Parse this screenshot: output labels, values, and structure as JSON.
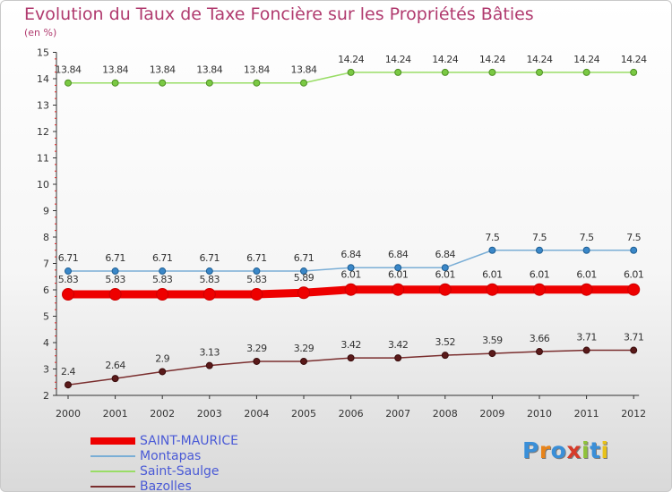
{
  "title": "Evolution du Taux de Taxe Foncière sur les Propriétés Bâties",
  "unit_label": "(en %)",
  "brand": {
    "text": "Proxiti",
    "letter_colors": [
      "#3a8fd8",
      "#e8841a",
      "#3a8fd8",
      "#d63b2a",
      "#8fc23a",
      "#3a8fd8",
      "#e8c21a"
    ]
  },
  "chart_data": {
    "type": "line",
    "title": "Evolution du Taux de Taxe Foncière sur les Propriétés Bâties",
    "ylabel": "(en %)",
    "xlabel": "",
    "x": [
      "2000",
      "2001",
      "2002",
      "2003",
      "2004",
      "2005",
      "2006",
      "2007",
      "2008",
      "2009",
      "2010",
      "2011",
      "2012"
    ],
    "ylim": [
      2,
      15
    ],
    "yticks": [
      "2",
      "3",
      "4",
      "5",
      "6",
      "7",
      "8",
      "9",
      "10",
      "11",
      "12",
      "13",
      "14",
      "15"
    ],
    "grid": false,
    "legend_position": "bottom-left",
    "series": [
      {
        "name": "SAINT-MAURICE",
        "color": "#ee0000",
        "values": [
          5.83,
          5.83,
          5.83,
          5.83,
          5.83,
          5.89,
          6.01,
          6.01,
          6.01,
          6.01,
          6.01,
          6.01,
          6.01
        ],
        "labels": [
          "5.83",
          "5.83",
          "5.83",
          "5.83",
          "5.83",
          "5.89",
          "6.01",
          "6.01",
          "6.01",
          "6.01",
          "6.01",
          "6.01",
          "6.01"
        ]
      },
      {
        "name": "Montapas",
        "color": "#7aaed6",
        "values": [
          6.71,
          6.71,
          6.71,
          6.71,
          6.71,
          6.71,
          6.84,
          6.84,
          6.84,
          7.5,
          7.5,
          7.5,
          7.5
        ],
        "labels": [
          "6.71",
          "6.71",
          "6.71",
          "6.71",
          "6.71",
          "6.71",
          "6.84",
          "6.84",
          "6.84",
          "7.5",
          "7.5",
          "7.5",
          "7.5"
        ]
      },
      {
        "name": "Saint-Saulge",
        "color": "#99dd66",
        "values": [
          13.84,
          13.84,
          13.84,
          13.84,
          13.84,
          13.84,
          14.24,
          14.24,
          14.24,
          14.24,
          14.24,
          14.24,
          14.24
        ],
        "labels": [
          "13.84",
          "13.84",
          "13.84",
          "13.84",
          "13.84",
          "13.84",
          "14.24",
          "14.24",
          "14.24",
          "14.24",
          "14.24",
          "14.24",
          "14.24"
        ]
      },
      {
        "name": "Bazolles",
        "color": "#7a2e2e",
        "values": [
          2.4,
          2.64,
          2.9,
          3.13,
          3.29,
          3.29,
          3.42,
          3.42,
          3.52,
          3.59,
          3.66,
          3.71,
          3.71
        ],
        "labels": [
          "2.4",
          "2.64",
          "2.9",
          "3.13",
          "3.29",
          "3.29",
          "3.42",
          "3.42",
          "3.52",
          "3.59",
          "3.66",
          "3.71",
          "3.71"
        ]
      }
    ]
  }
}
